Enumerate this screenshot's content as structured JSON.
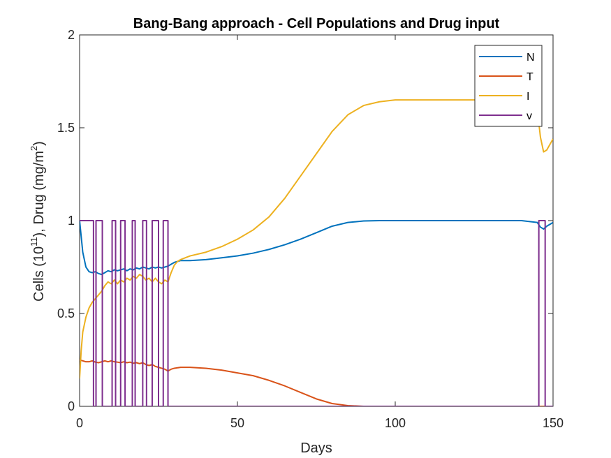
{
  "chart_data": {
    "type": "line",
    "title": "Bang-Bang approach - Cell Populations and Drug input",
    "xlabel": "Days",
    "ylabel": "Cells (10^11), Drug (mg/m^2)",
    "ylabel_parts": {
      "a": "Cells (10",
      "sup1": "11",
      "b": "), Drug (mg/m",
      "sup2": "2",
      "c": ")"
    },
    "xlim": [
      0,
      150
    ],
    "ylim": [
      0,
      2
    ],
    "xticks": [
      0,
      50,
      100,
      150
    ],
    "yticks": [
      0,
      0.5,
      1,
      1.5,
      2
    ],
    "xtick_labels": [
      "0",
      "50",
      "100",
      "150"
    ],
    "ytick_labels": [
      "0",
      "0.5",
      "1",
      "1.5",
      "2"
    ],
    "grid": false,
    "legend_position": "top-right",
    "series": [
      {
        "name": "N",
        "color": "#0072BD",
        "x": [
          0,
          1,
          2,
          3,
          4,
          5,
          6,
          7,
          8,
          9,
          10,
          11,
          12,
          13,
          14,
          15,
          16,
          17,
          18,
          19,
          20,
          21,
          22,
          23,
          24,
          25,
          26,
          27,
          28,
          29,
          30,
          31,
          32,
          35,
          40,
          45,
          50,
          55,
          60,
          65,
          70,
          75,
          80,
          85,
          90,
          95,
          100,
          110,
          120,
          130,
          140,
          145,
          146,
          147,
          148,
          150
        ],
        "y": [
          1.0,
          0.83,
          0.75,
          0.725,
          0.72,
          0.725,
          0.715,
          0.71,
          0.72,
          0.73,
          0.725,
          0.735,
          0.73,
          0.735,
          0.74,
          0.73,
          0.74,
          0.735,
          0.745,
          0.74,
          0.75,
          0.745,
          0.74,
          0.75,
          0.745,
          0.75,
          0.745,
          0.75,
          0.755,
          0.765,
          0.775,
          0.78,
          0.785,
          0.785,
          0.79,
          0.8,
          0.81,
          0.825,
          0.845,
          0.87,
          0.9,
          0.935,
          0.97,
          0.99,
          0.998,
          1.0,
          1.0,
          1.0,
          1.0,
          1.0,
          1.0,
          0.99,
          0.965,
          0.955,
          0.97,
          0.99
        ]
      },
      {
        "name": "T",
        "color": "#D95319",
        "x": [
          0,
          1,
          2,
          3,
          4,
          5,
          6,
          7,
          8,
          9,
          10,
          11,
          12,
          13,
          14,
          15,
          16,
          17,
          18,
          19,
          20,
          21,
          22,
          23,
          24,
          25,
          26,
          27,
          28,
          29,
          30,
          32,
          35,
          40,
          45,
          50,
          55,
          60,
          65,
          70,
          75,
          80,
          85,
          90,
          100,
          120,
          140,
          150
        ],
        "y": [
          0.25,
          0.245,
          0.24,
          0.24,
          0.245,
          0.238,
          0.235,
          0.24,
          0.245,
          0.24,
          0.245,
          0.24,
          0.238,
          0.235,
          0.24,
          0.235,
          0.238,
          0.232,
          0.235,
          0.23,
          0.235,
          0.225,
          0.22,
          0.225,
          0.215,
          0.21,
          0.205,
          0.2,
          0.19,
          0.2,
          0.205,
          0.21,
          0.21,
          0.205,
          0.195,
          0.18,
          0.165,
          0.14,
          0.11,
          0.075,
          0.04,
          0.015,
          0.004,
          0.0,
          0.0,
          0.0,
          0.0,
          0.0
        ]
      },
      {
        "name": "I",
        "color": "#EDB120",
        "x": [
          0,
          0.5,
          1,
          2,
          3,
          4,
          5,
          6,
          7,
          8,
          9,
          10,
          11,
          12,
          13,
          14,
          15,
          16,
          17,
          18,
          19,
          20,
          21,
          22,
          23,
          24,
          25,
          26,
          27,
          28,
          29,
          30,
          31,
          32,
          35,
          40,
          45,
          50,
          55,
          60,
          65,
          70,
          75,
          80,
          85,
          90,
          95,
          100,
          110,
          120,
          130,
          140,
          145,
          146,
          147,
          148,
          150
        ],
        "y": [
          0.15,
          0.3,
          0.4,
          0.48,
          0.53,
          0.56,
          0.58,
          0.6,
          0.62,
          0.65,
          0.67,
          0.66,
          0.68,
          0.66,
          0.68,
          0.67,
          0.69,
          0.68,
          0.7,
          0.69,
          0.71,
          0.7,
          0.68,
          0.69,
          0.67,
          0.69,
          0.67,
          0.66,
          0.68,
          0.67,
          0.72,
          0.76,
          0.78,
          0.79,
          0.81,
          0.83,
          0.86,
          0.9,
          0.95,
          1.02,
          1.12,
          1.24,
          1.36,
          1.48,
          1.57,
          1.62,
          1.64,
          1.65,
          1.65,
          1.65,
          1.65,
          1.65,
          1.6,
          1.45,
          1.37,
          1.38,
          1.44
        ]
      },
      {
        "name": "v",
        "color": "#7E2F8E",
        "x": [
          0,
          4.4,
          4.4,
          5.2,
          5.2,
          7.2,
          7.2,
          10.3,
          10.3,
          11.4,
          11.4,
          13.0,
          13.0,
          14.4,
          14.4,
          16.7,
          16.7,
          17.6,
          17.6,
          20.0,
          20.0,
          21.2,
          21.2,
          23.0,
          23.0,
          25.0,
          25.0,
          26.5,
          26.5,
          28.0,
          28.0,
          145.5,
          145.5,
          147.5,
          147.5,
          150
        ],
        "y": [
          1,
          1,
          0,
          0,
          1,
          1,
          0,
          0,
          1,
          1,
          0,
          0,
          1,
          1,
          0,
          0,
          1,
          1,
          0,
          0,
          1,
          1,
          0,
          0,
          1,
          1,
          0,
          0,
          1,
          1,
          0,
          0,
          1,
          1,
          0,
          0
        ]
      }
    ]
  }
}
